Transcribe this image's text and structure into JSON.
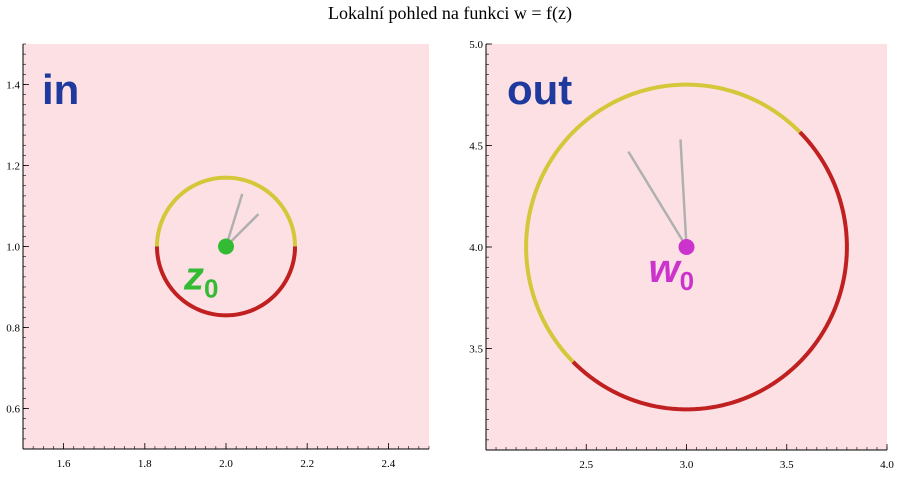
{
  "page": {
    "title": "Lokalní pohled na funkci w = f(z)"
  },
  "colors": {
    "background": "#fde0e4",
    "arc_upper": "#d4c73a",
    "arc_lower": "#c02020",
    "ray": "#b0b0b0",
    "in_point": "#33bb33",
    "out_point": "#cc33cc",
    "panel_label": "#1f3a9e"
  },
  "chart_data": [
    {
      "type": "scatter",
      "panel_label": "in",
      "xlim": [
        1.5,
        2.5
      ],
      "ylim": [
        0.5,
        1.5
      ],
      "xticks": [
        1.6,
        1.8,
        2.0,
        2.2,
        2.4
      ],
      "xtick_labels": [
        "1.6",
        "1.8",
        "2.0",
        "2.2",
        "2.4"
      ],
      "yticks": [
        0.6,
        0.8,
        1.0,
        1.2,
        1.4
      ],
      "ytick_labels": [
        "0.6",
        "0.8",
        "1.0",
        "1.2",
        "1.4"
      ],
      "grid": false,
      "point": {
        "x": 2.0,
        "y": 1.0,
        "label": "z",
        "subscript": "0"
      },
      "circle": {
        "cx": 2.0,
        "cy": 1.0,
        "r": 0.17
      },
      "rays": [
        {
          "x1": 2.0,
          "y1": 1.0,
          "x2": 2.04,
          "y2": 1.13
        },
        {
          "x1": 2.0,
          "y1": 1.0,
          "x2": 2.08,
          "y2": 1.08
        }
      ]
    },
    {
      "type": "scatter",
      "panel_label": "out",
      "xlim": [
        2.0,
        4.0
      ],
      "ylim": [
        3.0,
        5.0
      ],
      "xticks": [
        2.5,
        3.0,
        3.5,
        4.0
      ],
      "xtick_labels": [
        "2.5",
        "3.0",
        "3.5",
        "4.0"
      ],
      "yticks": [
        3.5,
        4.0,
        4.5,
        5.0
      ],
      "ytick_labels": [
        "3.5",
        "4.0",
        "4.5",
        "5.0"
      ],
      "grid": false,
      "point": {
        "x": 3.0,
        "y": 4.0,
        "label": "w",
        "subscript": "0"
      },
      "circle": {
        "cx": 3.0,
        "cy": 4.0,
        "r": 0.8,
        "upper_from_deg": 45,
        "upper_to_deg": 225
      },
      "rays": [
        {
          "x1": 3.0,
          "y1": 4.0,
          "x2": 2.71,
          "y2": 4.47
        },
        {
          "x1": 3.0,
          "y1": 4.0,
          "x2": 2.97,
          "y2": 4.53
        }
      ]
    }
  ]
}
